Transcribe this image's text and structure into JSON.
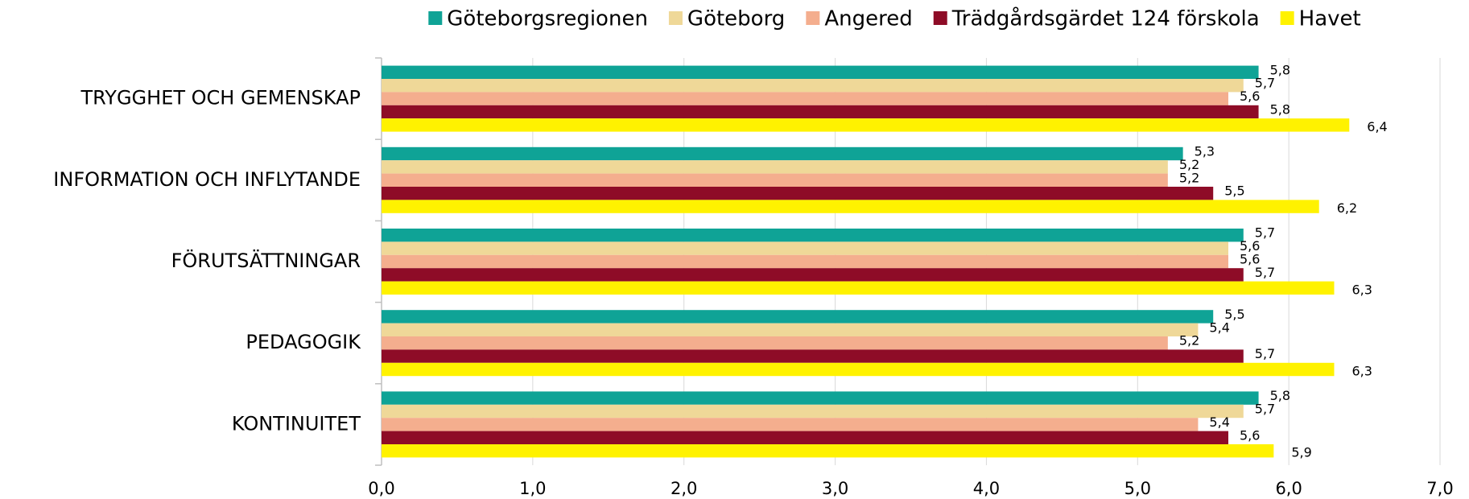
{
  "chart_data": {
    "type": "bar",
    "orientation": "horizontal",
    "categories": [
      "TRYGGHET OCH GEMENSKAP",
      "INFORMATION OCH INFLYTANDE",
      "FÖRUTSÄTTNINGAR",
      "PEDAGOGIK",
      "KONTINUITET"
    ],
    "series": [
      {
        "name": "Göteborgsregionen",
        "color": "#0fa396",
        "values": [
          5.8,
          5.3,
          5.7,
          5.5,
          5.8
        ],
        "value_labels": [
          "5,8",
          "5,3",
          "5,7",
          "5,5",
          "5,8"
        ]
      },
      {
        "name": "Göteborg",
        "color": "#efd898",
        "values": [
          5.7,
          5.2,
          5.6,
          5.4,
          5.7
        ],
        "value_labels": [
          "5,7",
          "5,2",
          "5,6",
          "5,4",
          "5,7"
        ]
      },
      {
        "name": "Angered",
        "color": "#f4ae8e",
        "values": [
          5.6,
          5.2,
          5.6,
          5.2,
          5.4
        ],
        "value_labels": [
          "5,6",
          "5,2",
          "5,6",
          "5,2",
          "5,4"
        ]
      },
      {
        "name": "Trädgårdsgärdet 124 förskola",
        "color": "#8e0c27",
        "values": [
          5.8,
          5.5,
          5.7,
          5.7,
          5.6
        ],
        "value_labels": [
          "5,8",
          "5,5",
          "5,7",
          "5,7",
          "5,6"
        ]
      },
      {
        "name": "Havet",
        "color": "#fff200",
        "values": [
          6.4,
          6.2,
          6.3,
          6.3,
          5.9
        ],
        "value_labels": [
          "6,4",
          "6,2",
          "6,3",
          "6,3",
          "5,9"
        ]
      }
    ],
    "xlim": [
      0,
      7
    ],
    "xticks": [
      {
        "value": 0,
        "label": "0,0"
      },
      {
        "value": 1,
        "label": "1,0"
      },
      {
        "value": 2,
        "label": "2,0"
      },
      {
        "value": 3,
        "label": "3,0"
      },
      {
        "value": 4,
        "label": "4,0"
      },
      {
        "value": 5,
        "label": "5,0"
      },
      {
        "value": 6,
        "label": "6,0"
      },
      {
        "value": 7,
        "label": "7,0"
      }
    ],
    "grid": true,
    "legend": "top"
  }
}
